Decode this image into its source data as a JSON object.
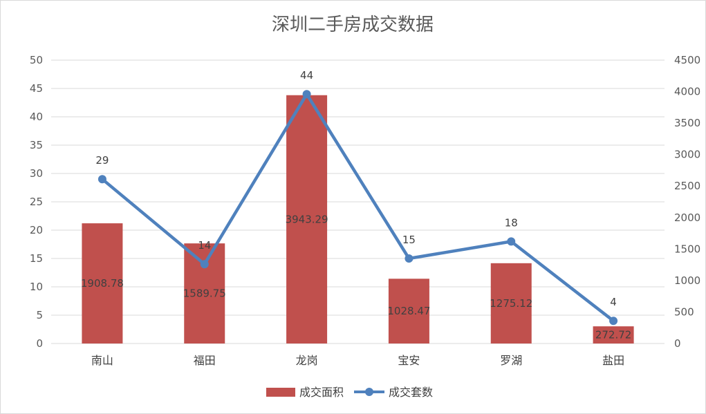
{
  "chart_data": {
    "type": "bar",
    "title": "深圳二手房成交数据",
    "categories": [
      "南山",
      "福田",
      "龙岗",
      "宝安",
      "罗湖",
      "盐田"
    ],
    "series": [
      {
        "name": "成交面积",
        "type": "bar",
        "axis": "right",
        "values": [
          1908.78,
          1589.75,
          3943.29,
          1028.47,
          1275.12,
          272.72
        ],
        "labels": [
          "1908.78",
          "1589.75",
          "3943.29",
          "1028.47",
          "1275.12",
          "272.72"
        ],
        "color": "#C0504D"
      },
      {
        "name": "成交套数",
        "type": "line",
        "axis": "left",
        "values": [
          29,
          14,
          44,
          15,
          18,
          4
        ],
        "labels": [
          "29",
          "14",
          "44",
          "15",
          "18",
          "4"
        ],
        "color": "#4F81BD"
      }
    ],
    "y_left": {
      "ylim": [
        0,
        50
      ],
      "ticks": [
        "0",
        "5",
        "10",
        "15",
        "20",
        "25",
        "30",
        "35",
        "40",
        "45",
        "50"
      ]
    },
    "y_right": {
      "ylim": [
        0,
        4500
      ],
      "ticks": [
        "0",
        "500",
        "1000",
        "1500",
        "2000",
        "2500",
        "3000",
        "3500",
        "4000",
        "4500"
      ]
    },
    "grid": true,
    "legend_position": "bottom"
  }
}
